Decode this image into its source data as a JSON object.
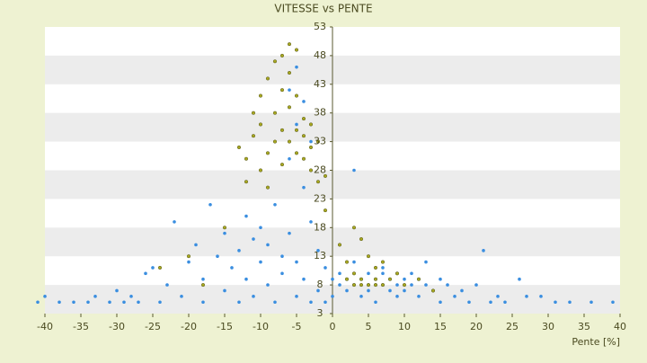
{
  "chart_data": {
    "type": "scatter",
    "title": "VITESSE vs PENTE",
    "x_label": "Pente [%]",
    "xlim": [
      -40,
      40
    ],
    "xticks": [
      -40,
      -35,
      -30,
      -25,
      -20,
      -15,
      -10,
      -5,
      0,
      5,
      10,
      15,
      20,
      25,
      30,
      35,
      40
    ],
    "ylim": [
      3,
      53
    ],
    "yticks": [
      3,
      8,
      13,
      18,
      23,
      28,
      33,
      38,
      43,
      48,
      53
    ],
    "grid": "bands",
    "series": [
      {
        "color": "#3a8ee0",
        "x": [
          -41,
          -40,
          -38,
          -36,
          -34,
          -33,
          -31,
          -30,
          -29,
          -28,
          -27,
          -26,
          -25,
          -24,
          -23,
          -22,
          -21,
          -20,
          -19,
          -18,
          -18,
          -17,
          -16,
          -15,
          -15,
          -14,
          -13,
          -13,
          -12,
          -12,
          -11,
          -11,
          -10,
          -10,
          -9,
          -9,
          -8,
          -8,
          -7,
          -7,
          -6,
          -6,
          -6,
          -5,
          -5,
          -5,
          -5,
          -4,
          -4,
          -4,
          -3,
          -3,
          -3,
          -2,
          -2,
          -1,
          -1,
          0,
          0,
          1,
          1,
          2,
          2,
          3,
          3,
          3,
          4,
          4,
          5,
          5,
          5,
          6,
          6,
          6,
          7,
          7,
          7,
          8,
          8,
          9,
          9,
          9,
          10,
          10,
          11,
          11,
          12,
          12,
          13,
          13,
          14,
          15,
          15,
          16,
          17,
          18,
          19,
          20,
          21,
          22,
          23,
          24,
          26,
          27,
          29,
          31,
          33,
          36,
          39
        ],
        "y": [
          5,
          6,
          5,
          5,
          5,
          6,
          5,
          7,
          5,
          6,
          5,
          10,
          11,
          5,
          8,
          19,
          6,
          12,
          15,
          5,
          9,
          22,
          13,
          7,
          17,
          11,
          5,
          14,
          20,
          9,
          16,
          6,
          18,
          12,
          8,
          15,
          5,
          22,
          10,
          13,
          42,
          30,
          17,
          46,
          36,
          6,
          12,
          40,
          25,
          9,
          33,
          19,
          5,
          14,
          7,
          11,
          5,
          9,
          6,
          8,
          10,
          7,
          9,
          28,
          12,
          8,
          9,
          6,
          8,
          10,
          7,
          9,
          8,
          5,
          8,
          10,
          11,
          9,
          7,
          8,
          10,
          6,
          9,
          7,
          8,
          10,
          9,
          6,
          8,
          12,
          7,
          9,
          5,
          8,
          6,
          7,
          5,
          8,
          14,
          5,
          6,
          5,
          9,
          6,
          6,
          5,
          5,
          5,
          5
        ]
      },
      {
        "color": "#a8a820",
        "x": [
          -13,
          -12,
          -12,
          -11,
          -11,
          -10,
          -10,
          -10,
          -9,
          -9,
          -9,
          -8,
          -8,
          -8,
          -7,
          -7,
          -7,
          -7,
          -6,
          -6,
          -6,
          -6,
          -5,
          -5,
          -5,
          -5,
          -4,
          -4,
          -4,
          -3,
          -3,
          -3,
          -2,
          -2,
          -1,
          -1,
          -15,
          -20,
          -24,
          -18,
          1,
          2,
          3,
          3,
          4,
          4,
          5,
          5,
          6,
          6,
          7,
          8,
          9,
          10,
          12,
          14,
          2,
          3,
          4,
          6,
          7
        ],
        "y": [
          32,
          30,
          26,
          38,
          34,
          41,
          28,
          36,
          44,
          31,
          25,
          47,
          38,
          33,
          48,
          42,
          35,
          29,
          50,
          45,
          39,
          33,
          49,
          41,
          35,
          31,
          37,
          34,
          30,
          36,
          32,
          28,
          33,
          26,
          27,
          21,
          18,
          13,
          11,
          8,
          15,
          12,
          18,
          10,
          16,
          9,
          13,
          8,
          11,
          9,
          12,
          9,
          10,
          8,
          9,
          7,
          9,
          8,
          8,
          8,
          8
        ]
      }
    ]
  }
}
